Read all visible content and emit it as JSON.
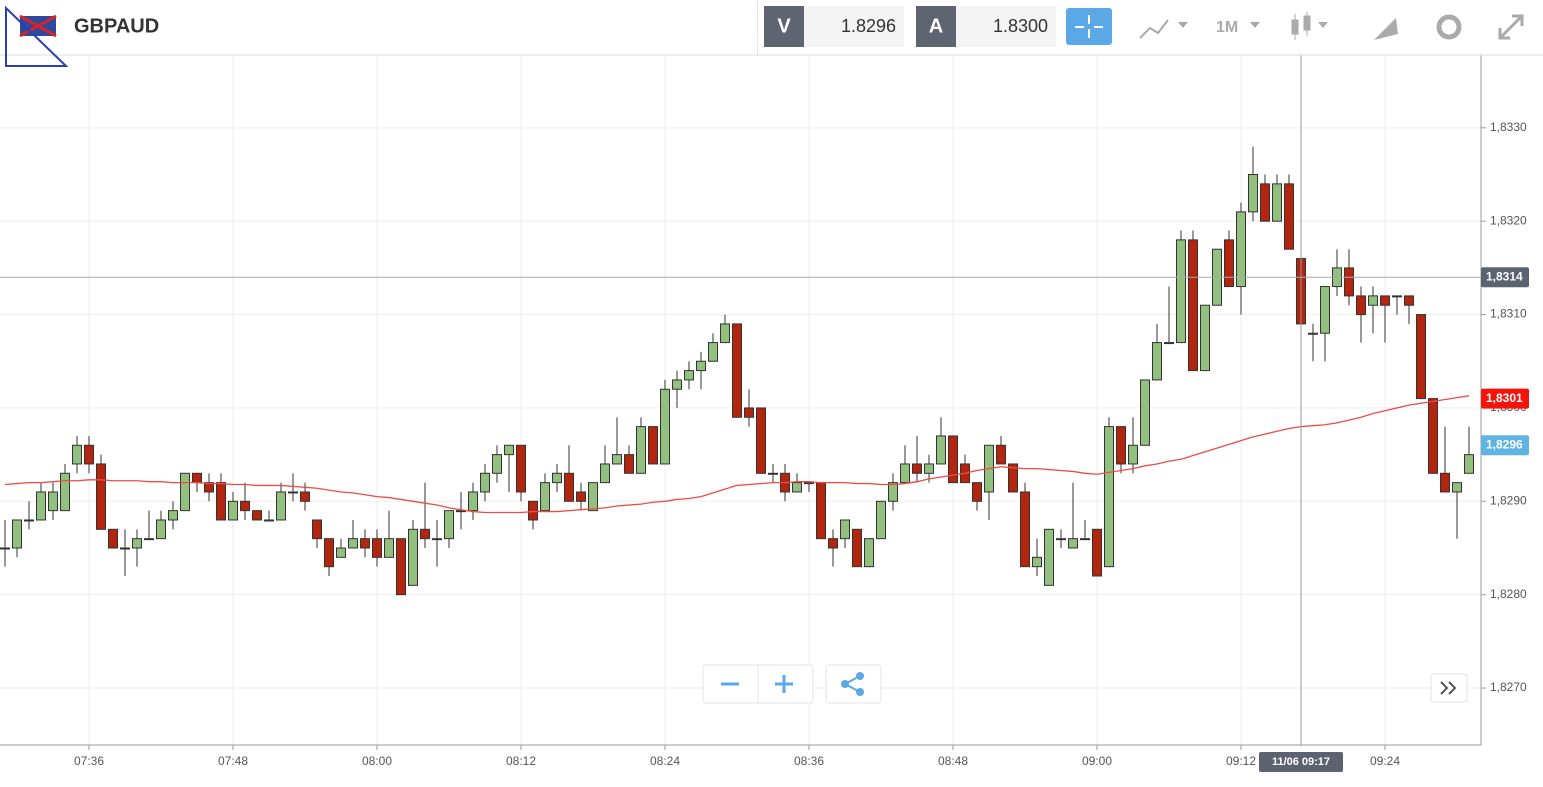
{
  "header": {
    "symbol": "GBPAUD",
    "bid_label": "V",
    "bid": "1.8296",
    "ask_label": "A",
    "ask": "1.8300",
    "timeframe": "1M"
  },
  "chart_data": {
    "type": "candlestick",
    "categories": [
      null,
      null,
      null,
      null,
      null,
      null,
      null,
      "07:36",
      null,
      null,
      null,
      null,
      null,
      null,
      null,
      null,
      null,
      null,
      null,
      "07:48",
      null,
      null,
      null,
      null,
      null,
      null,
      null,
      null,
      null,
      null,
      null,
      "08:00",
      null,
      null,
      null,
      null,
      null,
      null,
      null,
      null,
      null,
      null,
      null,
      "08:12",
      null,
      null,
      null,
      null,
      null,
      null,
      null,
      null,
      null,
      null,
      null,
      "08:24",
      null,
      null,
      null,
      null,
      null,
      null,
      null,
      null,
      null,
      null,
      null,
      "08:36",
      null,
      null,
      null,
      null,
      null,
      null,
      null,
      null,
      null,
      null,
      null,
      "08:48",
      null,
      null,
      null,
      null,
      null,
      null,
      null,
      null,
      null,
      null,
      null,
      "09:00",
      null,
      null,
      null,
      null,
      null,
      null,
      null,
      null,
      null,
      null,
      null,
      "09:12",
      null,
      null,
      null,
      null,
      null,
      null,
      null,
      null,
      null,
      null,
      null,
      "09:24",
      null,
      null,
      null,
      null,
      null,
      null,
      null
    ],
    "open": [
      1.8285,
      1.8285,
      1.8288,
      1.8288,
      1.8289,
      1.8289,
      1.8294,
      1.8296,
      1.8294,
      1.8287,
      1.8285,
      1.8285,
      1.8286,
      1.8286,
      1.8288,
      1.8289,
      1.8293,
      1.8292,
      1.8292,
      1.8288,
      1.829,
      1.8289,
      1.8288,
      1.8288,
      1.8291,
      1.8291,
      1.8288,
      1.8286,
      1.8284,
      1.8285,
      1.8286,
      1.8286,
      1.8284,
      1.8286,
      1.8281,
      1.8287,
      1.8286,
      1.8286,
      1.8289,
      1.8289,
      1.8291,
      1.8293,
      1.8295,
      1.8296,
      1.829,
      1.8289,
      1.8292,
      1.8293,
      1.8291,
      1.8289,
      1.8292,
      1.8294,
      1.8295,
      1.8293,
      1.8298,
      1.8294,
      1.8302,
      1.8303,
      1.8304,
      1.8305,
      1.8307,
      1.8309,
      1.83,
      1.83,
      1.8293,
      1.8293,
      1.8291,
      1.8292,
      1.8292,
      1.8286,
      1.8286,
      1.8287,
      1.8283,
      1.8286,
      1.829,
      1.8292,
      1.8294,
      1.8293,
      1.8294,
      1.8297,
      1.8294,
      1.8292,
      1.8291,
      1.8296,
      1.8294,
      1.8291,
      1.8283,
      1.8281,
      1.8286,
      1.8285,
      1.8286,
      1.8287,
      1.8283,
      1.8298,
      1.8294,
      1.8296,
      1.8303,
      1.8307,
      1.8307,
      1.8318,
      1.8304,
      1.8311,
      1.8318,
      1.8313,
      1.8321,
      1.8324,
      1.832,
      1.8324,
      1.8316,
      1.8308,
      1.8308,
      1.8313,
      1.8315,
      1.8312,
      1.8311,
      1.8312,
      1.8312,
      1.8312,
      1.831,
      1.8301,
      1.8293,
      1.8291,
      1.8293
    ],
    "high": [
      1.8288,
      1.8288,
      1.829,
      1.8292,
      1.8292,
      1.8294,
      1.8297,
      1.8297,
      1.8295,
      1.8287,
      1.8287,
      1.8287,
      1.8289,
      1.8289,
      1.829,
      1.8293,
      1.8293,
      1.8293,
      1.8293,
      1.8291,
      1.8292,
      1.8289,
      1.8289,
      1.8292,
      1.8293,
      1.8292,
      1.8288,
      1.8286,
      1.8286,
      1.8288,
      1.8287,
      1.8287,
      1.8289,
      1.8286,
      1.8288,
      1.8292,
      1.8288,
      1.8289,
      1.8291,
      1.8292,
      1.8294,
      1.8296,
      1.8296,
      1.8296,
      1.829,
      1.8293,
      1.8294,
      1.8296,
      1.8292,
      1.8292,
      1.8296,
      1.8299,
      1.8296,
      1.8299,
      1.8298,
      1.8303,
      1.8304,
      1.8305,
      1.8306,
      1.8308,
      1.831,
      1.8309,
      1.8302,
      1.83,
      1.8294,
      1.8294,
      1.8293,
      1.8292,
      1.8292,
      1.8287,
      1.8288,
      1.8287,
      1.8286,
      1.829,
      1.8293,
      1.8296,
      1.8297,
      1.8295,
      1.8299,
      1.8297,
      1.8295,
      1.8292,
      1.8296,
      1.8297,
      1.8294,
      1.8292,
      1.8286,
      1.8287,
      1.8287,
      1.8292,
      1.8288,
      1.8287,
      1.8299,
      1.8298,
      1.8299,
      1.8303,
      1.8309,
      1.8313,
      1.8319,
      1.8319,
      1.8311,
      1.8317,
      1.8319,
      1.8322,
      1.8328,
      1.8325,
      1.8325,
      1.8325,
      1.8316,
      1.8309,
      1.8313,
      1.8317,
      1.8317,
      1.8313,
      1.8313,
      1.8312,
      1.8312,
      1.8312,
      1.831,
      1.8301,
      1.8298,
      1.8292,
      1.8298
    ],
    "low": [
      1.8283,
      1.8284,
      1.8287,
      1.8288,
      1.8288,
      1.8289,
      1.8293,
      1.8293,
      1.8287,
      1.8285,
      1.8282,
      1.8283,
      1.8286,
      1.8286,
      1.8287,
      1.8289,
      1.8291,
      1.829,
      1.8288,
      1.8288,
      1.8288,
      1.8288,
      1.8288,
      1.8288,
      1.829,
      1.8289,
      1.8285,
      1.8282,
      1.8284,
      1.8285,
      1.8284,
      1.8283,
      1.8284,
      1.828,
      1.8281,
      1.8285,
      1.8283,
      1.8285,
      1.8287,
      1.8288,
      1.829,
      1.8292,
      1.8291,
      1.829,
      1.8287,
      1.8289,
      1.8291,
      1.829,
      1.8289,
      1.8289,
      1.8292,
      1.8294,
      1.8293,
      1.8293,
      1.8294,
      1.8294,
      1.83,
      1.8302,
      1.8302,
      1.8305,
      1.8307,
      1.8299,
      1.8298,
      1.8293,
      1.8292,
      1.829,
      1.8291,
      1.8291,
      1.8286,
      1.8283,
      1.8285,
      1.8283,
      1.8283,
      1.8286,
      1.8289,
      1.8292,
      1.8292,
      1.8292,
      1.8294,
      1.8292,
      1.8292,
      1.8289,
      1.8288,
      1.8294,
      1.8291,
      1.8283,
      1.8282,
      1.8281,
      1.8285,
      1.8285,
      1.8286,
      1.8282,
      1.8283,
      1.8293,
      1.8293,
      1.8296,
      1.8303,
      1.8307,
      1.8307,
      1.8304,
      1.8304,
      1.8311,
      1.8313,
      1.831,
      1.832,
      1.832,
      1.832,
      1.8317,
      1.8307,
      1.8305,
      1.8305,
      1.8312,
      1.8311,
      1.8307,
      1.8308,
      1.8307,
      1.831,
      1.8309,
      1.8301,
      1.8293,
      1.8291,
      1.8286,
      1.8293
    ],
    "close": [
      1.8285,
      1.8288,
      1.8288,
      1.8291,
      1.8291,
      1.8293,
      1.8296,
      1.8294,
      1.8287,
      1.8285,
      1.8285,
      1.8286,
      1.8286,
      1.8288,
      1.8289,
      1.8293,
      1.8292,
      1.8291,
      1.8288,
      1.829,
      1.8289,
      1.8288,
      1.8288,
      1.8291,
      1.8291,
      1.829,
      1.8286,
      1.8283,
      1.8285,
      1.8286,
      1.8285,
      1.8284,
      1.8286,
      1.828,
      1.8287,
      1.8286,
      1.8286,
      1.8289,
      1.8289,
      1.8291,
      1.8293,
      1.8295,
      1.8296,
      1.8291,
      1.8288,
      1.8292,
      1.8293,
      1.829,
      1.829,
      1.8292,
      1.8294,
      1.8295,
      1.8293,
      1.8298,
      1.8294,
      1.8302,
      1.8303,
      1.8304,
      1.8305,
      1.8307,
      1.8309,
      1.8299,
      1.8299,
      1.8293,
      1.8293,
      1.8291,
      1.8292,
      1.8292,
      1.8286,
      1.8285,
      1.8288,
      1.8283,
      1.8286,
      1.829,
      1.8292,
      1.8294,
      1.8293,
      1.8294,
      1.8297,
      1.8292,
      1.8292,
      1.829,
      1.8296,
      1.8294,
      1.8291,
      1.8283,
      1.8284,
      1.8287,
      1.8286,
      1.8286,
      1.8286,
      1.8282,
      1.8298,
      1.8294,
      1.8296,
      1.8303,
      1.8307,
      1.8307,
      1.8318,
      1.8304,
      1.8311,
      1.8317,
      1.8313,
      1.8321,
      1.8325,
      1.832,
      1.8324,
      1.8317,
      1.8309,
      1.8308,
      1.8313,
      1.8315,
      1.8312,
      1.831,
      1.8312,
      1.8311,
      1.8312,
      1.8311,
      1.8301,
      1.8293,
      1.8291,
      1.8292,
      1.8295
    ],
    "up_color": "#92c07f",
    "down_color": "#b3250e",
    "ma": {
      "color": "#ec4c45",
      "values": [
        1.82918,
        1.82919,
        1.8292,
        1.8292,
        1.82921,
        1.82922,
        1.82922,
        1.82923,
        1.82923,
        1.82922,
        1.82922,
        1.82922,
        1.82921,
        1.82921,
        1.8292,
        1.8292,
        1.8292,
        1.82919,
        1.82919,
        1.82918,
        1.82918,
        1.82917,
        1.82917,
        1.82917,
        1.82916,
        1.82915,
        1.82914,
        1.82912,
        1.8291,
        1.82909,
        1.82907,
        1.82905,
        1.82904,
        1.82902,
        1.829,
        1.82898,
        1.82896,
        1.82893,
        1.82891,
        1.82889,
        1.82888,
        1.82888,
        1.82888,
        1.82888,
        1.82889,
        1.82889,
        1.82889,
        1.8289,
        1.82891,
        1.82892,
        1.82893,
        1.82895,
        1.82896,
        1.82897,
        1.82899,
        1.829,
        1.82902,
        1.82903,
        1.82905,
        1.82909,
        1.82913,
        1.82917,
        1.82918,
        1.82919,
        1.8292,
        1.8292,
        1.82921,
        1.82921,
        1.8292,
        1.8292,
        1.8292,
        1.82919,
        1.82919,
        1.82918,
        1.82918,
        1.82919,
        1.82921,
        1.82924,
        1.82926,
        1.82928,
        1.8293,
        1.82933,
        1.82935,
        1.82937,
        1.82936,
        1.82935,
        1.82935,
        1.82934,
        1.82933,
        1.82932,
        1.8293,
        1.82929,
        1.82931,
        1.82933,
        1.82935,
        1.82938,
        1.8294,
        1.82943,
        1.82945,
        1.82949,
        1.82953,
        1.82957,
        1.82961,
        1.82965,
        1.82969,
        1.82972,
        1.82975,
        1.82978,
        1.8298,
        1.82981,
        1.82982,
        1.82984,
        1.82987,
        1.8299,
        1.82994,
        1.82997,
        1.83,
        1.83003,
        1.83005,
        1.83007,
        1.83009,
        1.83011,
        1.83013
      ]
    },
    "ylim": [
      1.82639,
      1.83378
    ],
    "yticks": [
      {
        "value": 1.827,
        "label": "1,8270"
      },
      {
        "value": 1.828,
        "label": "1,8280"
      },
      {
        "value": 1.829,
        "label": "1,8290"
      },
      {
        "value": 1.83,
        "label": "1,8300"
      },
      {
        "value": 1.831,
        "label": "1,8310"
      },
      {
        "value": 1.832,
        "label": "1,8320"
      },
      {
        "value": 1.833,
        "label": "1,8330"
      }
    ],
    "grid": true,
    "price_markers": [
      {
        "value": 1.8314,
        "label": "1,8314",
        "color": "#5d6270"
      },
      {
        "value": 1.8301,
        "label": "1,8301",
        "color": "#f5140c"
      },
      {
        "value": 1.8296,
        "label": "1,8296",
        "color": "#5fb4e2"
      }
    ],
    "crosshair_time": "11/06 09:17"
  }
}
